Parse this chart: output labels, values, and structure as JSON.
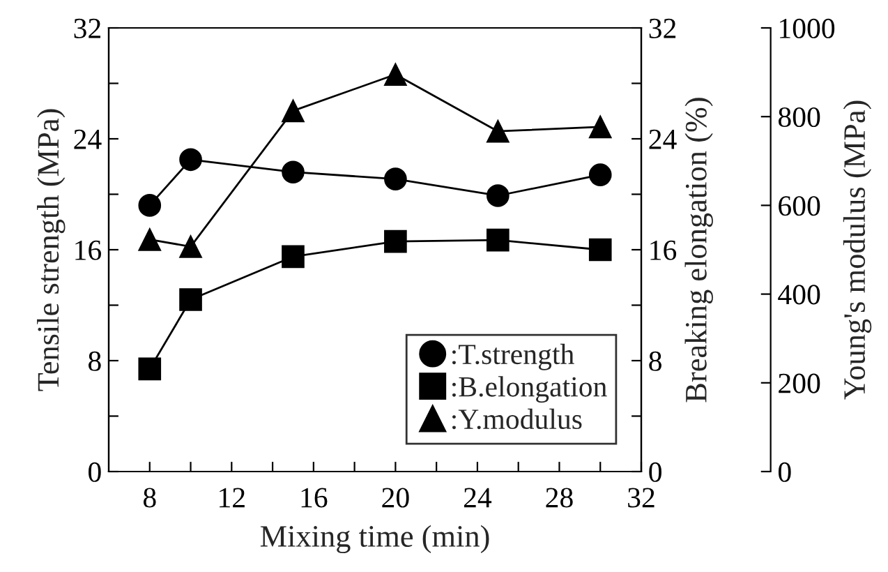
{
  "chart_data": {
    "type": "line",
    "xlabel": "Mixing time (min)",
    "ylabel": "Tensile strength (MPa)",
    "y2label": "Breaking elongation (%)",
    "y3label": "Young's modulus (MPa)",
    "x": [
      8,
      10,
      15,
      20,
      25,
      30
    ],
    "series": [
      {
        "name": ":T.strength",
        "color": "#000000",
        "marker": "circle",
        "axis": "y",
        "values": [
          19.2,
          22.5,
          21.6,
          21.1,
          19.9,
          21.4
        ]
      },
      {
        "name": ":B.elongation",
        "color": "#000000",
        "marker": "square",
        "axis": "y2",
        "values": [
          7.4,
          12.4,
          15.5,
          16.6,
          16.7,
          16.0
        ]
      },
      {
        "name": ":Y.modulus",
        "color": "#000000",
        "marker": "triangle",
        "axis": "y3",
        "values": [
          523,
          507,
          813,
          895,
          767,
          777
        ]
      }
    ],
    "xlim": [
      6,
      32
    ],
    "xticks": [
      8,
      {
        "value": 10,
        "label": null
      },
      12,
      {
        "value": 14,
        "label": null
      },
      16,
      {
        "value": 18,
        "label": null
      },
      20,
      {
        "value": 22,
        "label": null
      },
      24,
      {
        "value": 26,
        "label": null
      },
      28,
      {
        "value": 30,
        "label": null
      },
      32
    ],
    "ylim": [
      0,
      32
    ],
    "yticks": [
      0,
      {
        "value": 4,
        "label": null
      },
      8,
      {
        "value": 12,
        "label": null
      },
      16,
      {
        "value": 20,
        "label": null
      },
      24,
      {
        "value": 28,
        "label": null
      },
      32
    ],
    "y2lim": [
      0,
      32
    ],
    "y2ticks": [
      0,
      {
        "value": 4,
        "label": null
      },
      8,
      {
        "value": 12,
        "label": null
      },
      16,
      {
        "value": 20,
        "label": null
      },
      24,
      {
        "value": 28,
        "label": null
      },
      32
    ],
    "y3lim": [
      0,
      1000
    ],
    "y3ticks": [
      0,
      200,
      400,
      600,
      800,
      1000
    ],
    "line_style": "solid",
    "grid": false,
    "legend": "bottom right"
  }
}
